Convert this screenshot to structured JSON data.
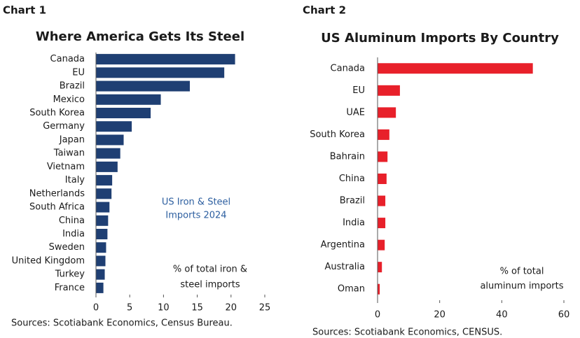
{
  "chart_data": [
    {
      "type": "bar",
      "orientation": "horizontal",
      "label": "Chart 1",
      "title": "Where America Gets Its Steel",
      "categories": [
        "Canada",
        "EU",
        "Brazil",
        "Mexico",
        "South Korea",
        "Germany",
        "Japan",
        "Taiwan",
        "Vietnam",
        "Italy",
        "Netherlands",
        "South Africa",
        "China",
        "India",
        "Sweden",
        "United Kingdom",
        "Turkey",
        "France"
      ],
      "values": [
        20.6,
        19.0,
        13.9,
        9.6,
        8.1,
        5.3,
        4.1,
        3.6,
        3.2,
        2.4,
        2.3,
        2.0,
        1.8,
        1.7,
        1.5,
        1.4,
        1.3,
        1.1
      ],
      "color": "#1f3f73",
      "xlim": [
        0,
        25
      ],
      "xticks": [
        0,
        5,
        10,
        15,
        20,
        25
      ],
      "annotations": [
        {
          "lines": [
            "US Iron & Steel",
            "Imports 2024"
          ],
          "color": "#2d5fa0"
        },
        {
          "lines": [
            "% of total iron &",
            "steel imports"
          ],
          "color": "#1a1a1a"
        }
      ],
      "source": "Sources: Scotiabank Economics, Census Bureau."
    },
    {
      "type": "bar",
      "orientation": "horizontal",
      "label": "Chart 2",
      "title": "US Aluminum Imports By Country",
      "categories": [
        "Canada",
        "EU",
        "UAE",
        "South Korea",
        "Bahrain",
        "China",
        "Brazil",
        "India",
        "Argentina",
        "Australia",
        "Oman"
      ],
      "values": [
        50,
        7.2,
        5.9,
        3.8,
        3.2,
        2.9,
        2.5,
        2.5,
        2.3,
        1.4,
        0.7
      ],
      "color": "#e8202a",
      "xlim": [
        0,
        60
      ],
      "xticks": [
        0,
        20,
        40,
        60
      ],
      "annotations": [
        {
          "lines": [
            "% of total",
            "aluminum imports"
          ],
          "color": "#1a1a1a"
        }
      ],
      "source": "Sources: Scotiabank Economics, CENSUS."
    }
  ]
}
